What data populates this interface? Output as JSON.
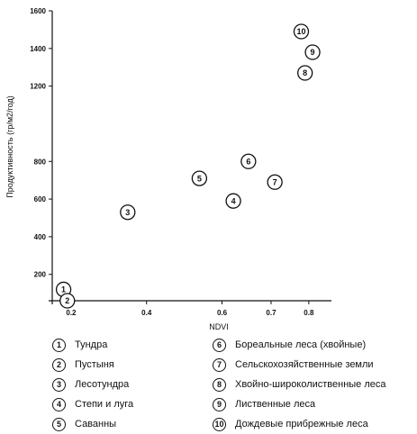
{
  "chart_data": {
    "type": "scatter",
    "xlabel": "NDVI",
    "ylabel": "Продуктивность (гр/м2/год)",
    "xlim": [
      0.12,
      0.86
    ],
    "ylim": [
      60,
      1600
    ],
    "x_ticks": [
      "0.2",
      "0.4",
      "0.6",
      "0.7",
      "0.8"
    ],
    "x_tick_values": [
      0.17,
      0.37,
      0.57,
      0.7,
      0.8
    ],
    "y_ticks": [
      "200",
      "400",
      "600",
      "800",
      "1200",
      "1400",
      "1600"
    ],
    "y_tick_values": [
      200,
      400,
      600,
      800,
      1200,
      1400,
      1600
    ],
    "grid": false,
    "legend_placement": "bottom",
    "points": [
      {
        "label": "1",
        "x": 0.15,
        "y": 120
      },
      {
        "label": "2",
        "x": 0.16,
        "y": 60
      },
      {
        "label": "3",
        "x": 0.32,
        "y": 530
      },
      {
        "label": "4",
        "x": 0.6,
        "y": 590
      },
      {
        "label": "5",
        "x": 0.51,
        "y": 710
      },
      {
        "label": "6",
        "x": 0.64,
        "y": 800
      },
      {
        "label": "7",
        "x": 0.71,
        "y": 690
      },
      {
        "label": "8",
        "x": 0.79,
        "y": 1270
      },
      {
        "label": "9",
        "x": 0.81,
        "y": 1380
      },
      {
        "label": "10",
        "x": 0.78,
        "y": 1490
      }
    ]
  },
  "legend": [
    {
      "num": "1",
      "label": "Тундра"
    },
    {
      "num": "2",
      "label": "Пустыня"
    },
    {
      "num": "3",
      "label": "Лесотундра"
    },
    {
      "num": "4",
      "label": "Степи и луга"
    },
    {
      "num": "5",
      "label": "Саванны"
    },
    {
      "num": "6",
      "label": "Бореальные леса (хвойные)"
    },
    {
      "num": "7",
      "label": "Сельскохозяйственные земли"
    },
    {
      "num": "8",
      "label": "Хвойно-широколиственные леса"
    },
    {
      "num": "9",
      "label": "Лиственные леса"
    },
    {
      "num": "10",
      "label": "Дождевые прибрежные леса"
    }
  ]
}
